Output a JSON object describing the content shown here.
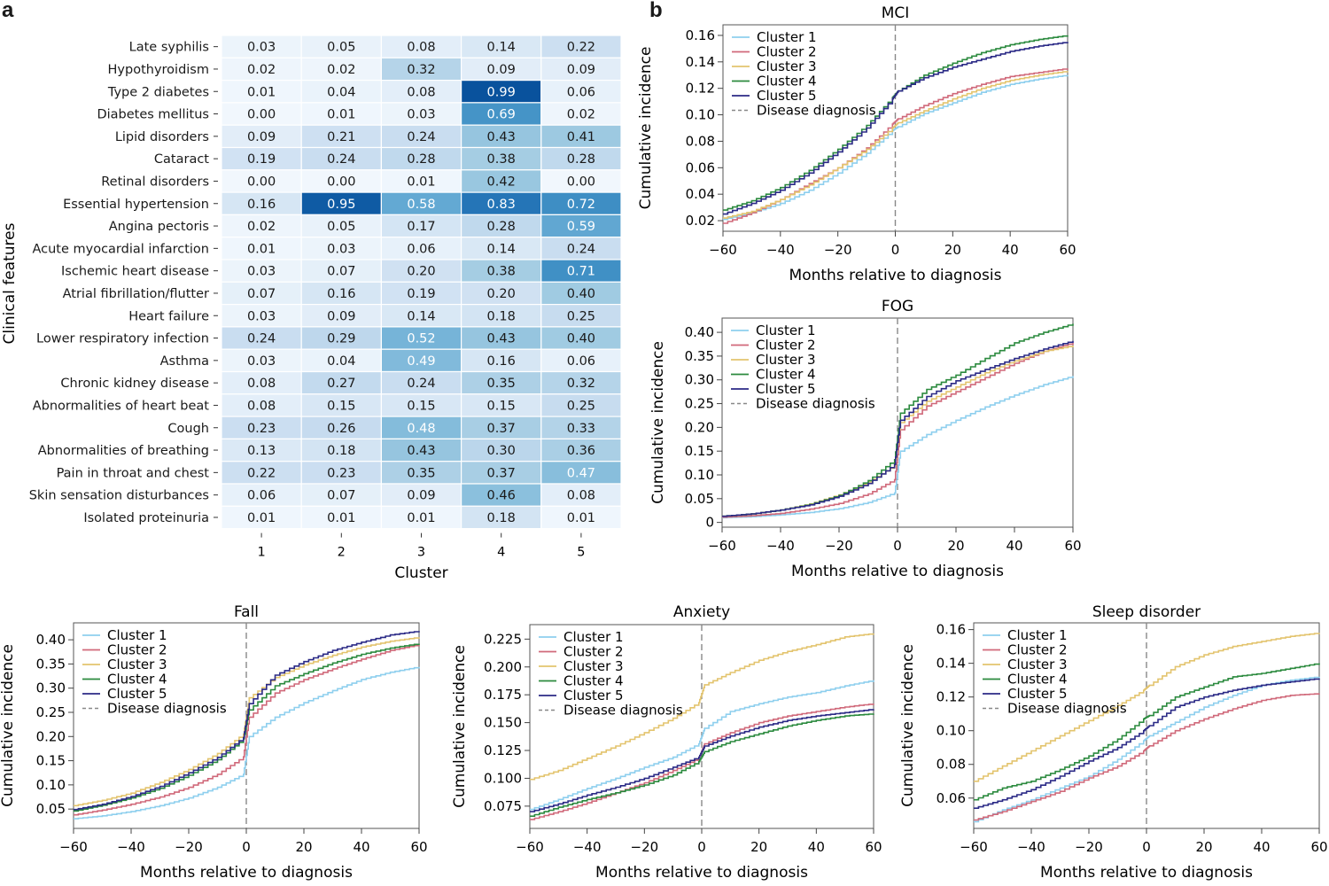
{
  "panels": {
    "a": "a",
    "b": "b"
  },
  "legend_common": {
    "entries": [
      "Cluster 1",
      "Cluster 2",
      "Cluster 3",
      "Cluster 4",
      "Cluster 5",
      "Disease diagnosis"
    ],
    "colors": [
      "#8ecfee",
      "#d0697a",
      "#e3c46e",
      "#2b8a3e",
      "#2b2a86",
      "#888888"
    ]
  },
  "chart_data": [
    {
      "type": "heatmap",
      "id": "heatmap",
      "title": "",
      "xlabel": "Cluster",
      "ylabel": "Clinical features",
      "x_categories": [
        "1",
        "2",
        "3",
        "4",
        "5"
      ],
      "y_categories": [
        "Late syphilis",
        "Hypothyroidism",
        "Type 2 diabetes",
        "Diabetes mellitus",
        "Lipid disorders",
        "Cataract",
        "Retinal disorders",
        "Essential hypertension",
        "Angina pectoris",
        "Acute myocardial infarction",
        "Ischemic heart disease",
        "Atrial fibrillation/flutter",
        "Heart failure",
        "Lower respiratory infection",
        "Asthma",
        "Chronic kidney disease",
        "Abnormalities of heart beat",
        "Cough",
        "Abnormalities of breathing",
        "Pain in throat and chest",
        "Skin sensation disturbances",
        "Isolated proteinuria"
      ],
      "values": [
        [
          "0.03",
          "0.05",
          "0.08",
          "0.14",
          "0.22"
        ],
        [
          "0.02",
          "0.02",
          "0.32",
          "0.09",
          "0.09"
        ],
        [
          "0.01",
          "0.04",
          "0.08",
          "0.99",
          "0.06"
        ],
        [
          "0.00",
          "0.01",
          "0.03",
          "0.69",
          "0.02"
        ],
        [
          "0.09",
          "0.21",
          "0.24",
          "0.43",
          "0.41"
        ],
        [
          "0.19",
          "0.24",
          "0.28",
          "0.38",
          "0.28"
        ],
        [
          "0.00",
          "0.00",
          "0.01",
          "0.42",
          "0.00"
        ],
        [
          "0.16",
          "0.95",
          "0.58",
          "0.83",
          "0.72"
        ],
        [
          "0.02",
          "0.05",
          "0.17",
          "0.28",
          "0.59"
        ],
        [
          "0.01",
          "0.03",
          "0.06",
          "0.14",
          "0.24"
        ],
        [
          "0.03",
          "0.07",
          "0.20",
          "0.38",
          "0.71"
        ],
        [
          "0.07",
          "0.16",
          "0.19",
          "0.20",
          "0.40"
        ],
        [
          "0.03",
          "0.09",
          "0.14",
          "0.18",
          "0.25"
        ],
        [
          "0.24",
          "0.29",
          "0.52",
          "0.43",
          "0.40"
        ],
        [
          "0.03",
          "0.04",
          "0.49",
          "0.16",
          "0.06"
        ],
        [
          "0.08",
          "0.27",
          "0.24",
          "0.35",
          "0.32"
        ],
        [
          "0.08",
          "0.15",
          "0.15",
          "0.15",
          "0.25"
        ],
        [
          "0.23",
          "0.26",
          "0.48",
          "0.37",
          "0.33"
        ],
        [
          "0.13",
          "0.18",
          "0.43",
          "0.30",
          "0.36"
        ],
        [
          "0.22",
          "0.23",
          "0.35",
          "0.37",
          "0.47"
        ],
        [
          "0.06",
          "0.07",
          "0.09",
          "0.46",
          "0.08"
        ],
        [
          "0.01",
          "0.01",
          "0.01",
          "0.18",
          "0.01"
        ]
      ],
      "colormap": "Blues",
      "vrange": [
        0,
        1
      ]
    },
    {
      "type": "line",
      "id": "mci",
      "title": "MCI",
      "xlabel": "Months relative to diagnosis",
      "ylabel": "Cumulative incidence",
      "xlim": [
        -60,
        60
      ],
      "ylim": [
        0.012,
        0.168
      ],
      "xticks": [
        -60,
        -40,
        -20,
        0,
        20,
        40,
        60
      ],
      "xtick_labels": [
        "−60",
        "−40",
        "−20",
        "0",
        "20",
        "40",
        "60"
      ],
      "yticks": [
        0.02,
        0.04,
        0.06,
        0.08,
        0.1,
        0.12,
        0.14,
        0.16
      ],
      "ytick_labels": [
        "0.02",
        "0.04",
        "0.06",
        "0.08",
        "0.10",
        "0.12",
        "0.14",
        "0.16"
      ],
      "legend": "top-left",
      "vline_x": 0,
      "x": [
        -60,
        -50,
        -40,
        -30,
        -20,
        -10,
        -1,
        1,
        10,
        20,
        30,
        40,
        50,
        60
      ],
      "series": [
        {
          "name": "Cluster 1",
          "values": [
            0.021,
            0.026,
            0.033,
            0.043,
            0.056,
            0.071,
            0.088,
            0.091,
            0.101,
            0.109,
            0.117,
            0.123,
            0.127,
            0.13
          ]
        },
        {
          "name": "Cluster 2",
          "values": [
            0.018,
            0.026,
            0.036,
            0.048,
            0.06,
            0.075,
            0.093,
            0.097,
            0.107,
            0.116,
            0.123,
            0.129,
            0.132,
            0.135
          ]
        },
        {
          "name": "Cluster 3",
          "values": [
            0.022,
            0.027,
            0.036,
            0.047,
            0.06,
            0.074,
            0.09,
            0.094,
            0.103,
            0.112,
            0.12,
            0.126,
            0.13,
            0.133
          ]
        },
        {
          "name": "Cluster 4",
          "values": [
            0.028,
            0.035,
            0.045,
            0.058,
            0.074,
            0.092,
            0.113,
            0.118,
            0.13,
            0.139,
            0.147,
            0.153,
            0.157,
            0.16
          ]
        },
        {
          "name": "Cluster 5",
          "values": [
            0.025,
            0.033,
            0.043,
            0.056,
            0.072,
            0.09,
            0.112,
            0.118,
            0.128,
            0.136,
            0.142,
            0.148,
            0.152,
            0.155
          ]
        }
      ]
    },
    {
      "type": "line",
      "id": "fog",
      "title": "FOG",
      "xlabel": "Months relative to diagnosis",
      "ylabel": "Cumulative incidence",
      "xlim": [
        -60,
        60
      ],
      "ylim": [
        -0.01,
        0.43
      ],
      "xticks": [
        -60,
        -40,
        -20,
        0,
        20,
        40,
        60
      ],
      "xtick_labels": [
        "−60",
        "−40",
        "−20",
        "0",
        "20",
        "40",
        "60"
      ],
      "yticks": [
        0,
        0.05,
        0.1,
        0.15,
        0.2,
        0.25,
        0.3,
        0.35,
        0.4
      ],
      "ytick_labels": [
        "0",
        "0.05",
        "0.10",
        "0.15",
        "0.20",
        "0.25",
        "0.30",
        "0.35",
        "0.40"
      ],
      "legend": "top-left",
      "vline_x": 0,
      "x": [
        -60,
        -50,
        -40,
        -30,
        -20,
        -10,
        -1,
        1,
        10,
        20,
        30,
        40,
        50,
        60
      ],
      "series": [
        {
          "name": "Cluster 1",
          "values": [
            0.01,
            0.012,
            0.016,
            0.021,
            0.029,
            0.042,
            0.062,
            0.15,
            0.185,
            0.215,
            0.243,
            0.268,
            0.29,
            0.308
          ]
        },
        {
          "name": "Cluster 2",
          "values": [
            0.011,
            0.014,
            0.019,
            0.028,
            0.04,
            0.06,
            0.09,
            0.195,
            0.245,
            0.275,
            0.305,
            0.335,
            0.36,
            0.378
          ]
        },
        {
          "name": "Cluster 3",
          "values": [
            0.013,
            0.018,
            0.026,
            0.039,
            0.058,
            0.085,
            0.12,
            0.21,
            0.255,
            0.285,
            0.315,
            0.34,
            0.36,
            0.372
          ]
        },
        {
          "name": "Cluster 4",
          "values": [
            0.013,
            0.018,
            0.026,
            0.038,
            0.057,
            0.088,
            0.132,
            0.23,
            0.28,
            0.31,
            0.345,
            0.378,
            0.4,
            0.418
          ]
        },
        {
          "name": "Cluster 5",
          "values": [
            0.013,
            0.018,
            0.026,
            0.037,
            0.055,
            0.082,
            0.122,
            0.215,
            0.265,
            0.298,
            0.322,
            0.345,
            0.365,
            0.382
          ]
        }
      ]
    },
    {
      "type": "line",
      "id": "fall",
      "title": "Fall",
      "xlabel": "Months relative to diagnosis",
      "ylabel": "Cumulative incidence",
      "xlim": [
        -60,
        60
      ],
      "ylim": [
        0.01,
        0.435
      ],
      "xticks": [
        -60,
        -40,
        -20,
        0,
        20,
        40,
        60
      ],
      "xtick_labels": [
        "−60",
        "−40",
        "−20",
        "0",
        "20",
        "40",
        "60"
      ],
      "yticks": [
        0.05,
        0.1,
        0.15,
        0.2,
        0.25,
        0.3,
        0.35,
        0.4
      ],
      "ytick_labels": [
        "0.05",
        "0.10",
        "0.15",
        "0.20",
        "0.25",
        "0.30",
        "0.35",
        "0.40"
      ],
      "legend": "top-left",
      "vline_x": 0,
      "x": [
        -60,
        -50,
        -40,
        -30,
        -20,
        -10,
        -1,
        1,
        10,
        20,
        30,
        40,
        50,
        60
      ],
      "series": [
        {
          "name": "Cluster 1",
          "values": [
            0.03,
            0.036,
            0.045,
            0.057,
            0.073,
            0.095,
            0.122,
            0.2,
            0.24,
            0.27,
            0.295,
            0.318,
            0.333,
            0.344
          ]
        },
        {
          "name": "Cluster 2",
          "values": [
            0.038,
            0.048,
            0.06,
            0.075,
            0.095,
            0.122,
            0.158,
            0.24,
            0.29,
            0.318,
            0.34,
            0.36,
            0.378,
            0.39
          ]
        },
        {
          "name": "Cluster 3",
          "values": [
            0.057,
            0.068,
            0.083,
            0.105,
            0.132,
            0.165,
            0.205,
            0.28,
            0.322,
            0.348,
            0.368,
            0.385,
            0.397,
            0.405
          ]
        },
        {
          "name": "Cluster 4",
          "values": [
            0.046,
            0.058,
            0.073,
            0.093,
            0.12,
            0.152,
            0.195,
            0.255,
            0.305,
            0.33,
            0.352,
            0.37,
            0.383,
            0.392
          ]
        },
        {
          "name": "Cluster 5",
          "values": [
            0.049,
            0.06,
            0.076,
            0.097,
            0.125,
            0.157,
            0.198,
            0.268,
            0.327,
            0.355,
            0.378,
            0.395,
            0.41,
            0.418
          ]
        }
      ]
    },
    {
      "type": "line",
      "id": "anxiety",
      "title": "Anxiety",
      "xlabel": "Months relative to diagnosis",
      "ylabel": "Cumulative incidence",
      "xlim": [
        -60,
        60
      ],
      "ylim": [
        0.055,
        0.238
      ],
      "xticks": [
        -60,
        -40,
        -20,
        0,
        20,
        40,
        60
      ],
      "xtick_labels": [
        "−60",
        "−40",
        "−20",
        "0",
        "20",
        "40",
        "60"
      ],
      "yticks": [
        0.075,
        0.1,
        0.125,
        0.15,
        0.175,
        0.2,
        0.225
      ],
      "ytick_labels": [
        "0.075",
        "0.100",
        "0.125",
        "0.150",
        "0.175",
        "0.200",
        "0.225"
      ],
      "legend": "top-left",
      "vline_x": 0,
      "x": [
        -60,
        -50,
        -40,
        -30,
        -20,
        -10,
        -1,
        1,
        10,
        20,
        30,
        40,
        50,
        60
      ],
      "series": [
        {
          "name": "Cluster 1",
          "values": [
            0.072,
            0.081,
            0.091,
            0.1,
            0.11,
            0.119,
            0.131,
            0.145,
            0.16,
            0.167,
            0.173,
            0.177,
            0.183,
            0.188
          ]
        },
        {
          "name": "Cluster 2",
          "values": [
            0.063,
            0.07,
            0.078,
            0.087,
            0.096,
            0.107,
            0.118,
            0.131,
            0.141,
            0.15,
            0.156,
            0.16,
            0.164,
            0.167
          ]
        },
        {
          "name": "Cluster 3",
          "values": [
            0.099,
            0.107,
            0.118,
            0.129,
            0.141,
            0.154,
            0.168,
            0.184,
            0.195,
            0.206,
            0.214,
            0.22,
            0.227,
            0.23
          ]
        },
        {
          "name": "Cluster 4",
          "values": [
            0.066,
            0.074,
            0.081,
            0.087,
            0.094,
            0.103,
            0.115,
            0.124,
            0.133,
            0.14,
            0.147,
            0.152,
            0.156,
            0.158
          ]
        },
        {
          "name": "Cluster 5",
          "values": [
            0.07,
            0.077,
            0.085,
            0.092,
            0.1,
            0.11,
            0.119,
            0.129,
            0.138,
            0.146,
            0.152,
            0.156,
            0.159,
            0.162
          ]
        }
      ]
    },
    {
      "type": "line",
      "id": "sleep",
      "title": "Sleep disorder",
      "xlabel": "Months relative to diagnosis",
      "ylabel": "Cumulative incidence",
      "xlim": [
        -60,
        60
      ],
      "ylim": [
        0.042,
        0.164
      ],
      "xticks": [
        -60,
        -40,
        -20,
        0,
        20,
        40,
        60
      ],
      "xtick_labels": [
        "−60",
        "−40",
        "−20",
        "0",
        "20",
        "40",
        "60"
      ],
      "yticks": [
        0.06,
        0.08,
        0.1,
        0.12,
        0.14,
        0.16
      ],
      "ytick_labels": [
        "0.06",
        "0.08",
        "0.10",
        "0.12",
        "0.14",
        "0.16"
      ],
      "legend": "top-left",
      "vline_x": 0,
      "x": [
        -60,
        -50,
        -40,
        -30,
        -20,
        -10,
        -1,
        1,
        10,
        20,
        30,
        40,
        50,
        60
      ],
      "series": [
        {
          "name": "Cluster 1",
          "values": [
            0.046,
            0.053,
            0.059,
            0.066,
            0.073,
            0.083,
            0.094,
            0.097,
            0.105,
            0.114,
            0.121,
            0.127,
            0.13,
            0.132
          ]
        },
        {
          "name": "Cluster 2",
          "values": [
            0.047,
            0.052,
            0.058,
            0.064,
            0.072,
            0.079,
            0.088,
            0.091,
            0.1,
            0.107,
            0.113,
            0.118,
            0.121,
            0.122
          ]
        },
        {
          "name": "Cluster 3",
          "values": [
            0.07,
            0.079,
            0.088,
            0.097,
            0.106,
            0.115,
            0.124,
            0.127,
            0.138,
            0.145,
            0.15,
            0.153,
            0.156,
            0.158
          ]
        },
        {
          "name": "Cluster 4",
          "values": [
            0.059,
            0.066,
            0.07,
            0.077,
            0.085,
            0.095,
            0.107,
            0.109,
            0.12,
            0.126,
            0.132,
            0.134,
            0.137,
            0.14
          ]
        },
        {
          "name": "Cluster 5",
          "values": [
            0.054,
            0.059,
            0.065,
            0.073,
            0.082,
            0.09,
            0.1,
            0.103,
            0.114,
            0.12,
            0.124,
            0.127,
            0.129,
            0.131
          ]
        }
      ]
    }
  ]
}
